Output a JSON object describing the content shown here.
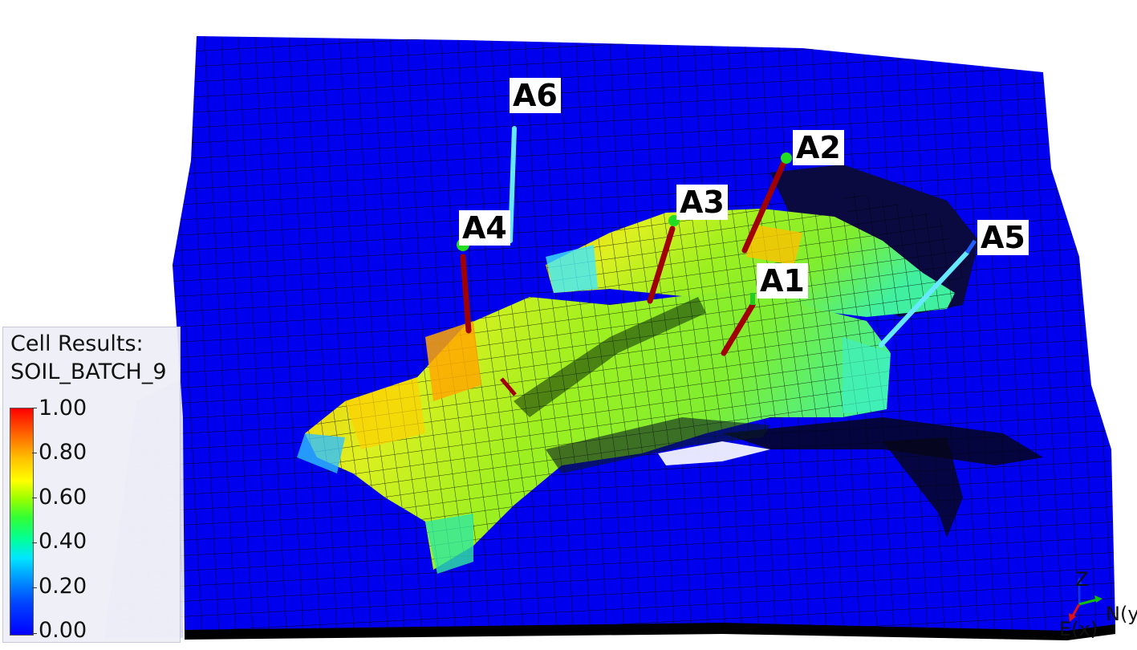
{
  "legend": {
    "title_line1": "Cell Results:",
    "title_line2": "SOIL_BATCH_9",
    "ticks": [
      "1.00",
      "0.80",
      "0.60",
      "0.40",
      "0.20",
      "0.00"
    ]
  },
  "wells": [
    {
      "name": "A1",
      "color": "#a00000"
    },
    {
      "name": "A2",
      "color": "#a00000"
    },
    {
      "name": "A3",
      "color": "#a00000"
    },
    {
      "name": "A4",
      "color": "#a00000"
    },
    {
      "name": "A5",
      "color": "#66e8ff"
    },
    {
      "name": "A6",
      "color": "#66e8ff"
    }
  ],
  "axes": {
    "z": "Z",
    "north": "N(y)",
    "east": "E(x)"
  },
  "colors": {
    "grid_background": "#0000ee",
    "mesh_lines": "#000000"
  }
}
